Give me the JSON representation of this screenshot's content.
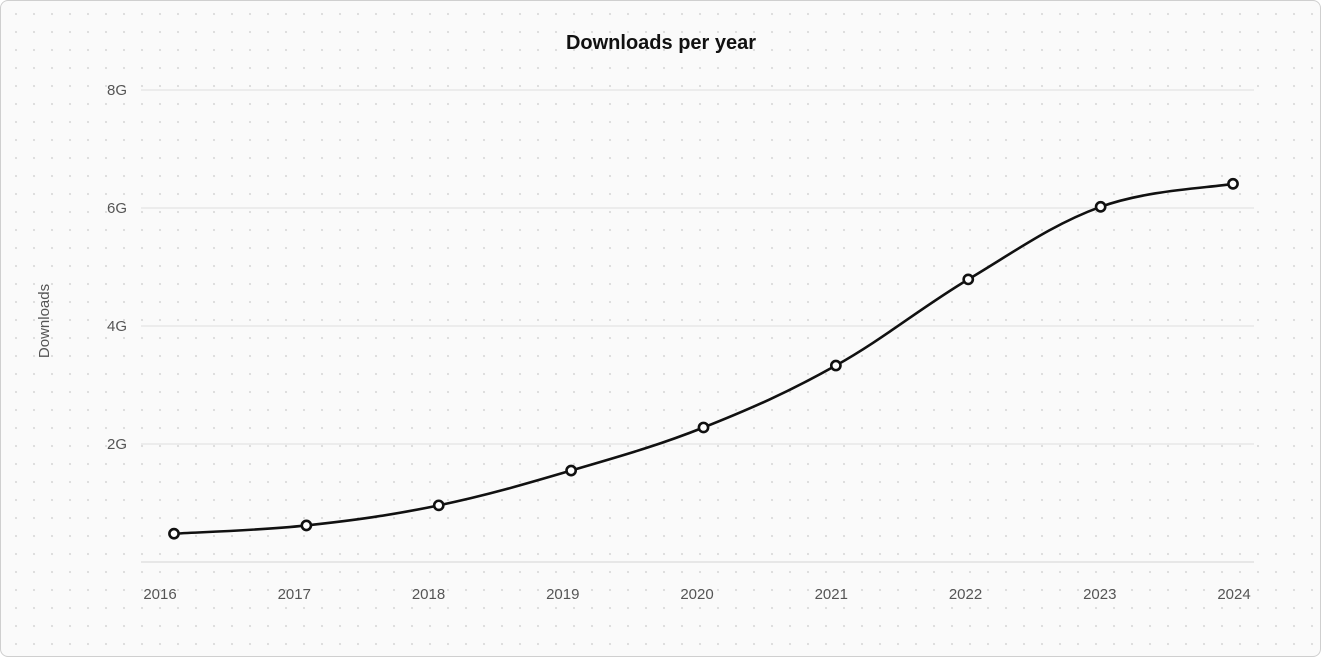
{
  "chart_data": {
    "type": "line",
    "title": "Downloads per year",
    "xlabel": "",
    "ylabel": "Downloads",
    "categories": [
      "2016",
      "2017",
      "2018",
      "2019",
      "2020",
      "2021",
      "2022",
      "2023",
      "2024"
    ],
    "series": [
      {
        "name": "Downloads",
        "values": [
          0.48,
          0.62,
          0.96,
          1.55,
          2.28,
          3.33,
          4.79,
          6.02,
          6.41
        ]
      }
    ],
    "ylim": [
      0,
      8
    ],
    "y_ticks": [
      2,
      4,
      6,
      8
    ],
    "y_tick_labels": [
      "2G",
      "4G",
      "6G",
      "8G"
    ],
    "grid": "horizontal",
    "legend": "none",
    "colors": {
      "line": "#111111",
      "marker_fill": "#ffffff",
      "grid": "#dddddd"
    }
  }
}
